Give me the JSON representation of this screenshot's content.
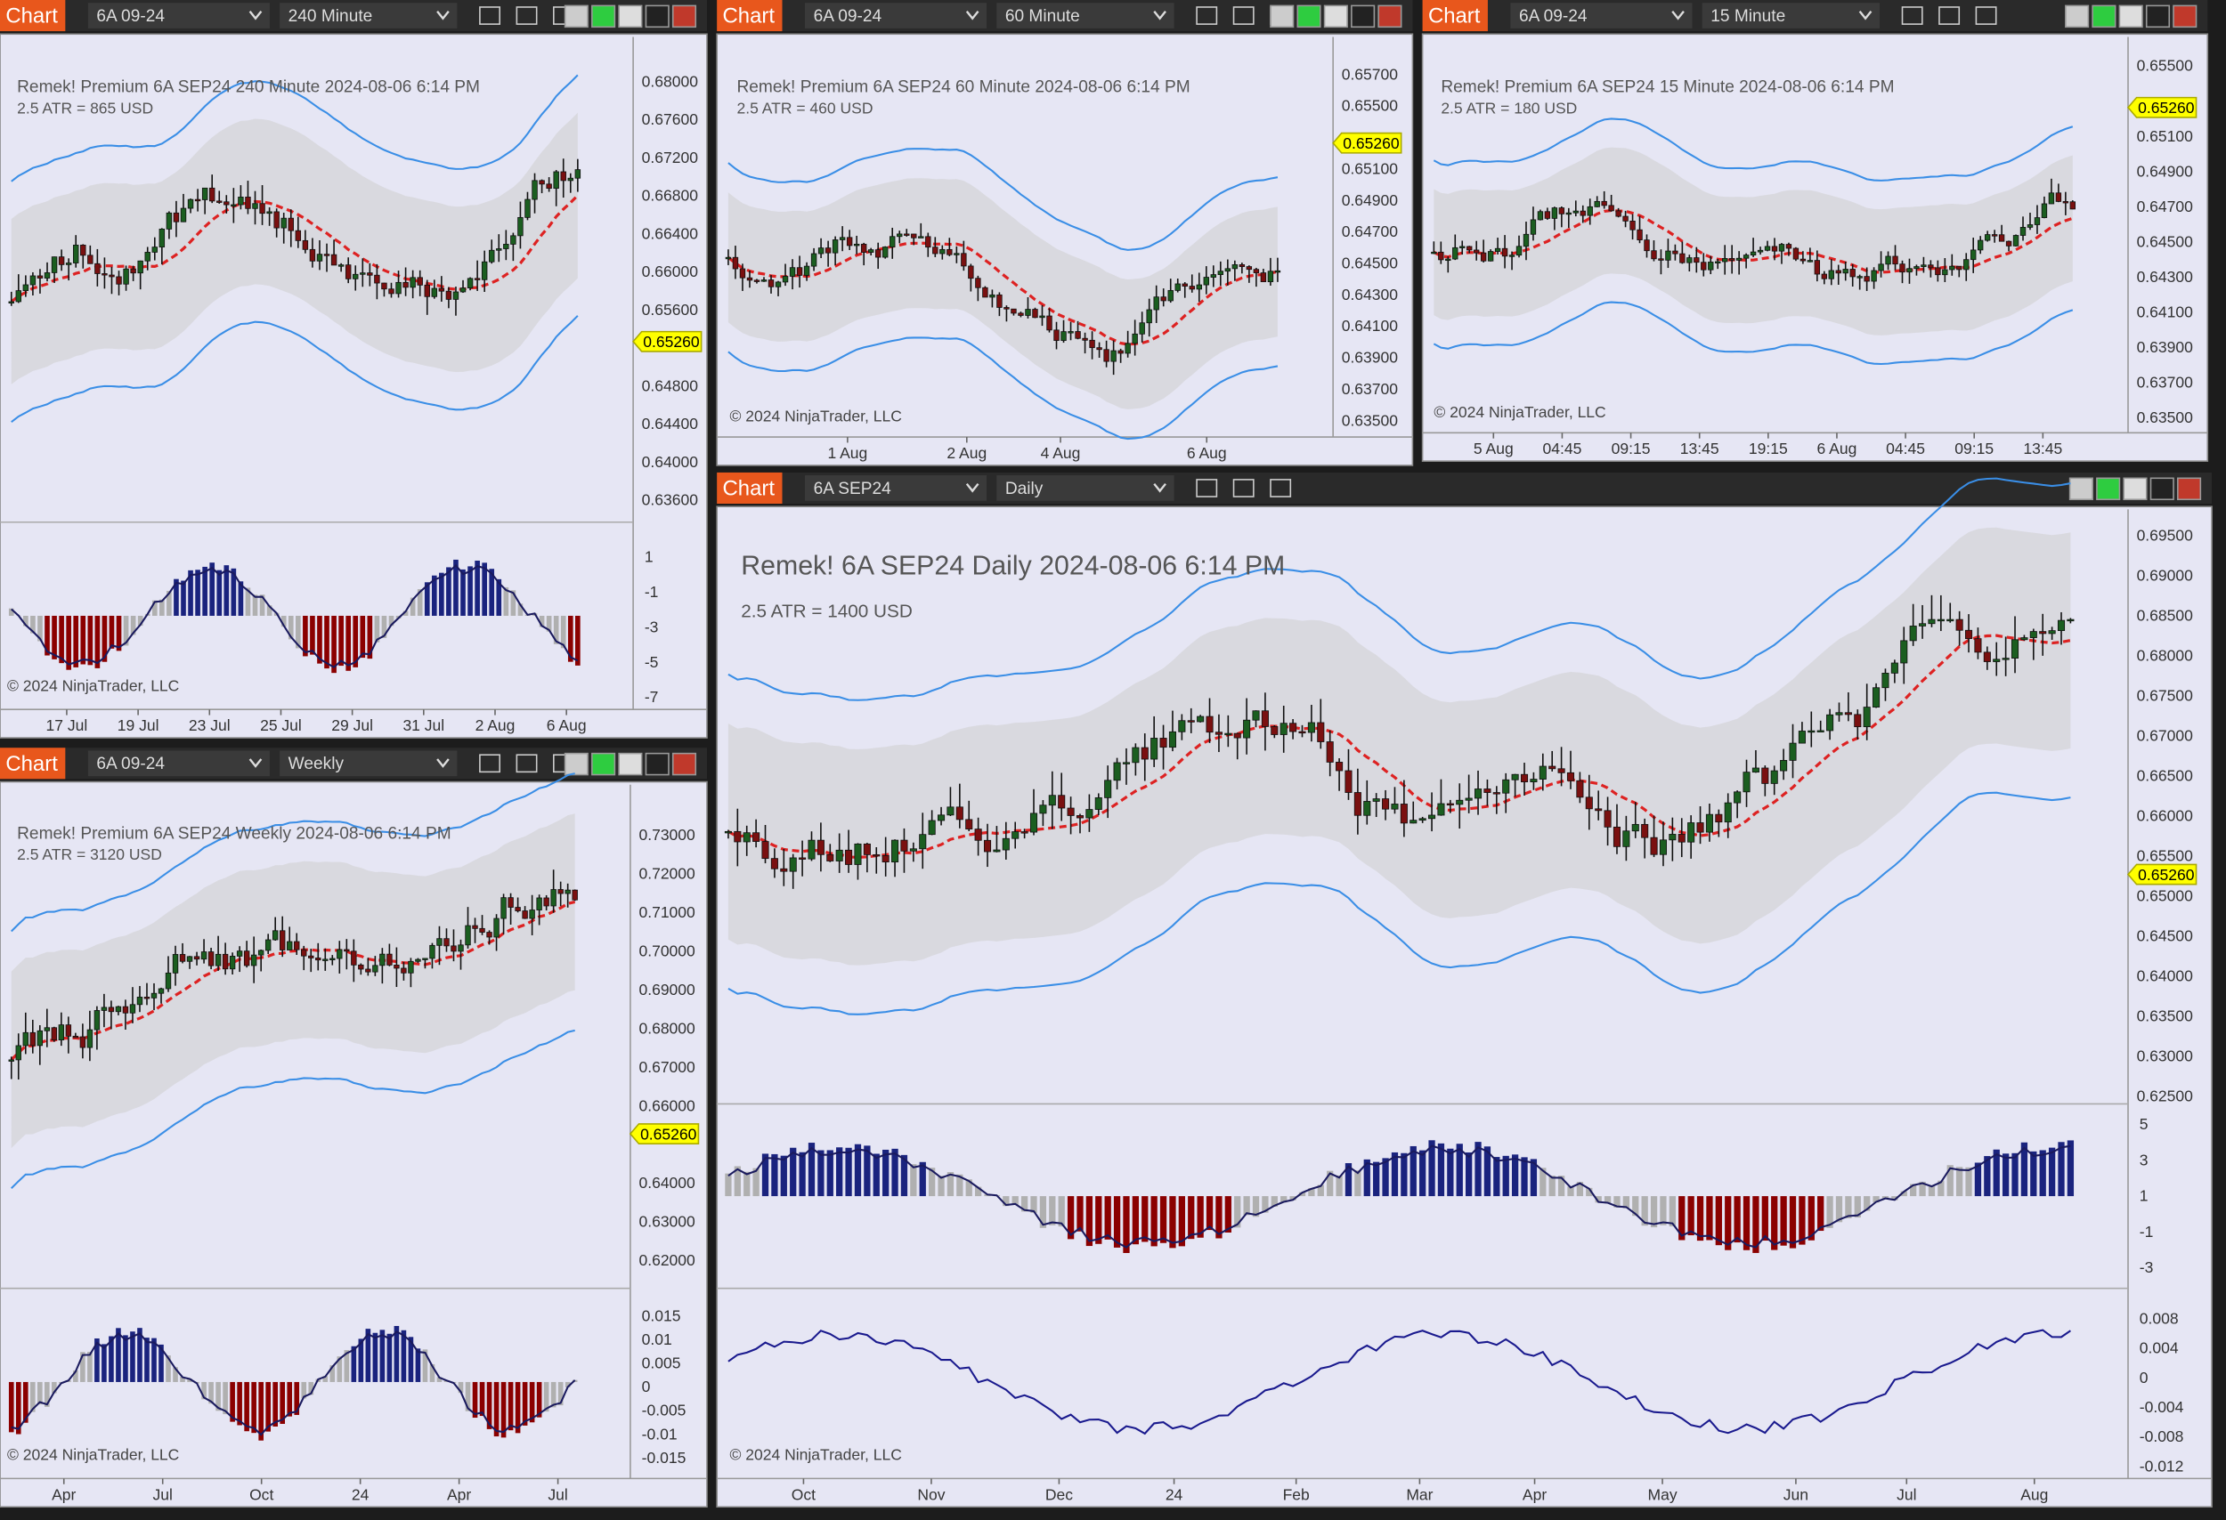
{
  "panels": [
    {
      "tab": "Chart",
      "instrument": "6A 09-24",
      "timeframe": "240 Minute",
      "header": "Remek!  Premium  6A SEP24  240 Minute  2024-08-06 6:14 PM",
      "atr": "2.5 ATR = 865 USD",
      "price_labels": [
        "0.68000",
        "0.67600",
        "0.67200",
        "0.66800",
        "0.66400",
        "0.66000",
        "0.65600",
        "0.64800",
        "0.64400",
        "0.64000",
        "0.63600"
      ],
      "price_marker": "0.65260",
      "osc_labels": [
        "1",
        "-1",
        "-3",
        "-5",
        "-7"
      ],
      "time_labels": [
        "17 Jul",
        "19 Jul",
        "23 Jul",
        "25 Jul",
        "29 Jul",
        "31 Jul",
        "2 Aug",
        "6 Aug"
      ],
      "copyright": "© 2024 NinjaTrader, LLC"
    },
    {
      "tab": "Chart",
      "instrument": "6A 09-24",
      "timeframe": "60 Minute",
      "header": "Remek!  Premium  6A SEP24  60 Minute  2024-08-06 6:14 PM",
      "atr": "2.5 ATR = 460 USD",
      "price_labels": [
        "0.65700",
        "0.65500",
        "0.65100",
        "0.64900",
        "0.64700",
        "0.64500",
        "0.64300",
        "0.64100",
        "0.63900",
        "0.63700",
        "0.63500"
      ],
      "price_marker": "0.65260",
      "time_labels": [
        "1 Aug",
        "2 Aug",
        "4 Aug",
        "6 Aug"
      ],
      "copyright": "© 2024 NinjaTrader, LLC"
    },
    {
      "tab": "Chart",
      "instrument": "6A 09-24",
      "timeframe": "15 Minute",
      "header": "Remek!  Premium  6A SEP24  15 Minute  2024-08-06 6:14 PM",
      "atr": "2.5 ATR = 180 USD",
      "price_labels": [
        "0.65500",
        "0.65100",
        "0.64900",
        "0.64700",
        "0.64500",
        "0.64300",
        "0.64100",
        "0.63900",
        "0.63700",
        "0.63500"
      ],
      "price_marker": "0.65260",
      "time_labels": [
        "5 Aug",
        "04:45",
        "09:15",
        "13:45",
        "19:15",
        "6 Aug",
        "04:45",
        "09:15",
        "13:45"
      ],
      "copyright": "© 2024 NinjaTrader, LLC"
    },
    {
      "tab": "Chart",
      "instrument": "6A 09-24",
      "timeframe": "Weekly",
      "header": "Remek!  Premium  6A SEP24  Weekly  2024-08-06 6:14 PM",
      "atr": "2.5 ATR = 3120 USD",
      "price_labels": [
        "0.73000",
        "0.72000",
        "0.71000",
        "0.70000",
        "0.69000",
        "0.68000",
        "0.67000",
        "0.66000",
        "0.64000",
        "0.63000",
        "0.62000"
      ],
      "price_marker": "0.65260",
      "osc_labels": [
        "0.015",
        "0.01",
        "0.005",
        "0",
        "-0.005",
        "-0.01",
        "-0.015"
      ],
      "time_labels": [
        "Apr",
        "Jul",
        "Oct",
        "24",
        "Apr",
        "Jul"
      ],
      "copyright": "© 2024 NinjaTrader, LLC"
    },
    {
      "tab": "Chart",
      "instrument": "6A SEP24",
      "timeframe": "Daily",
      "header": "Remek!  6A SEP24  Daily  2024-08-06 6:14 PM",
      "atr": "2.5 ATR = 1400 USD",
      "price_labels": [
        "0.69500",
        "0.69000",
        "0.68500",
        "0.68000",
        "0.67500",
        "0.67000",
        "0.66500",
        "0.66000",
        "0.65500",
        "0.65000",
        "0.64500",
        "0.64000",
        "0.63500",
        "0.63000",
        "0.62500"
      ],
      "price_marker": "0.65260",
      "osc_labels": [
        "5",
        "3",
        "1",
        "-1",
        "-3"
      ],
      "osc2_labels": [
        "0.008",
        "0.004",
        "0",
        "-0.004",
        "-0.008",
        "-0.012"
      ],
      "time_labels": [
        "Oct",
        "Nov",
        "Dec",
        "24",
        "Feb",
        "Mar",
        "Apr",
        "May",
        "Jun",
        "Jul",
        "Aug"
      ],
      "copyright": "© 2024 NinjaTrader, LLC"
    }
  ]
}
